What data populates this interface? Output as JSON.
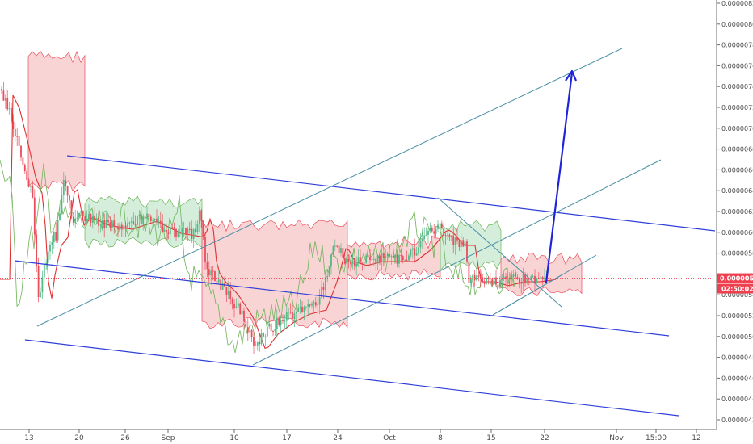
{
  "chart_data": {
    "type": "candlestick",
    "title": "",
    "xlabel": "",
    "ylabel": "",
    "ylim": [
      4.1e-06,
      8.2e-06
    ],
    "y_ticks": [
      "0.00000820",
      "0.00000800",
      "0.00000780",
      "0.00000760",
      "0.00000740",
      "0.00000720",
      "0.00000700",
      "0.00000680",
      "0.00000660",
      "0.00000640",
      "0.00000620",
      "0.00000600",
      "0.00000580",
      "0.00000540",
      "0.00000520",
      "0.00000500",
      "0.00000480",
      "0.00000460",
      "0.00000440",
      "0.00000420"
    ],
    "x_ticks": [
      "13",
      "20",
      "26",
      "Sep",
      "10",
      "17",
      "24",
      "Oct",
      "8",
      "15",
      "22",
      "Nov",
      "15:00",
      "12"
    ],
    "current_price": "0.00000556",
    "countdown": "02:50:02",
    "colors": {
      "up": "#53b987",
      "down": "#eb4d5c",
      "channel": "#2f3fd8",
      "trend": "#4a8fa8",
      "target_arrow": "#1f24d6",
      "cloud_bull": "#b9e3c3",
      "cloud_bear": "#f5b8b8",
      "ma": "#e03030",
      "lagging": "#6fb35a",
      "price_badge": "#ef4050"
    },
    "grid": false,
    "legend": "none"
  }
}
